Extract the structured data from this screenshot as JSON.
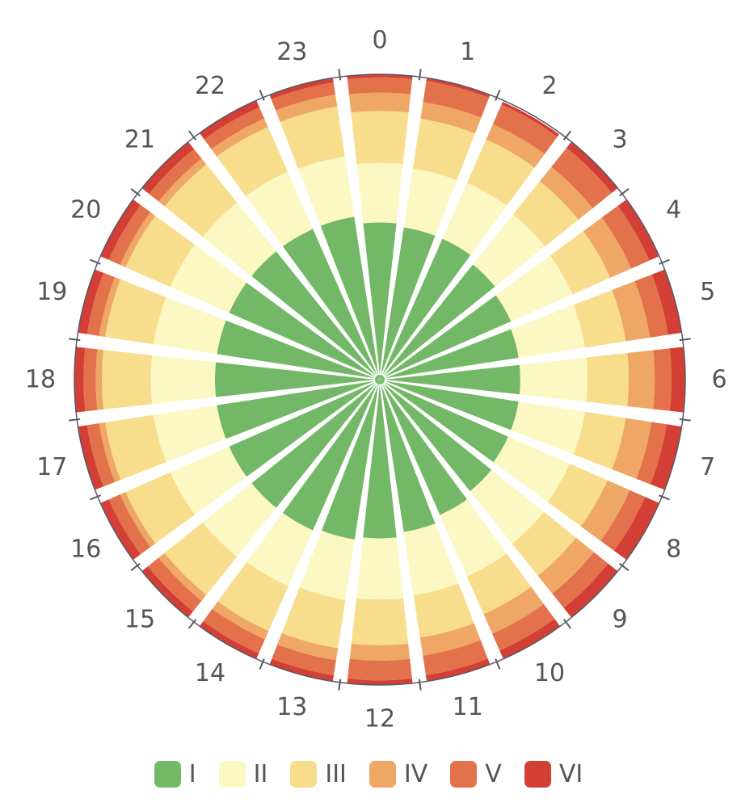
{
  "chart_data": {
    "type": "stacked-polar-bar",
    "angular_axis": {
      "categories": [
        "0",
        "1",
        "2",
        "3",
        "4",
        "5",
        "6",
        "7",
        "8",
        "9",
        "10",
        "11",
        "12",
        "13",
        "14",
        "15",
        "16",
        "17",
        "18",
        "19",
        "20",
        "21",
        "22",
        "23"
      ]
    },
    "series": [
      {
        "name": "I",
        "color": "#73b866",
        "values": [
          0.515,
          0.505,
          0.505,
          0.485,
          0.47,
          0.46,
          0.46,
          0.46,
          0.46,
          0.47,
          0.485,
          0.505,
          0.52,
          0.53,
          0.54,
          0.54,
          0.54,
          0.54,
          0.54,
          0.54,
          0.54,
          0.54,
          0.54,
          0.54
        ]
      },
      {
        "name": "II",
        "color": "#fbf8c4",
        "values": [
          0.195,
          0.195,
          0.2,
          0.21,
          0.22,
          0.22,
          0.22,
          0.22,
          0.22,
          0.22,
          0.22,
          0.21,
          0.2,
          0.2,
          0.2,
          0.205,
          0.21,
          0.21,
          0.21,
          0.21,
          0.21,
          0.205,
          0.205,
          0.2
        ]
      },
      {
        "name": "III",
        "color": "#f7dd8c",
        "values": [
          0.17,
          0.165,
          0.155,
          0.14,
          0.135,
          0.135,
          0.135,
          0.135,
          0.135,
          0.135,
          0.135,
          0.14,
          0.15,
          0.16,
          0.16,
          0.16,
          0.16,
          0.16,
          0.16,
          0.16,
          0.16,
          0.16,
          0.16,
          0.165
        ]
      },
      {
        "name": "IV",
        "color": "#eea764",
        "values": [
          0.06,
          0.055,
          0.055,
          0.06,
          0.075,
          0.08,
          0.085,
          0.085,
          0.08,
          0.075,
          0.07,
          0.06,
          0.05,
          0.04,
          0.03,
          0.025,
          0.02,
          0.02,
          0.02,
          0.02,
          0.02,
          0.025,
          0.03,
          0.04
        ]
      },
      {
        "name": "V",
        "color": "#e3714b",
        "values": [
          0.05,
          0.07,
          0.07,
          0.08,
          0.065,
          0.06,
          0.055,
          0.05,
          0.055,
          0.06,
          0.06,
          0.065,
          0.065,
          0.05,
          0.05,
          0.045,
          0.04,
          0.04,
          0.04,
          0.04,
          0.04,
          0.04,
          0.04,
          0.04
        ]
      },
      {
        "name": "VI",
        "color": "#d43f35",
        "values": [
          0.01,
          0.01,
          0.01,
          0.025,
          0.035,
          0.045,
          0.045,
          0.05,
          0.05,
          0.04,
          0.03,
          0.02,
          0.015,
          0.02,
          0.02,
          0.025,
          0.03,
          0.03,
          0.03,
          0.03,
          0.03,
          0.03,
          0.025,
          0.015
        ]
      }
    ],
    "radial_range": [
      0,
      1
    ],
    "legend_position": "bottom",
    "grid": false
  }
}
